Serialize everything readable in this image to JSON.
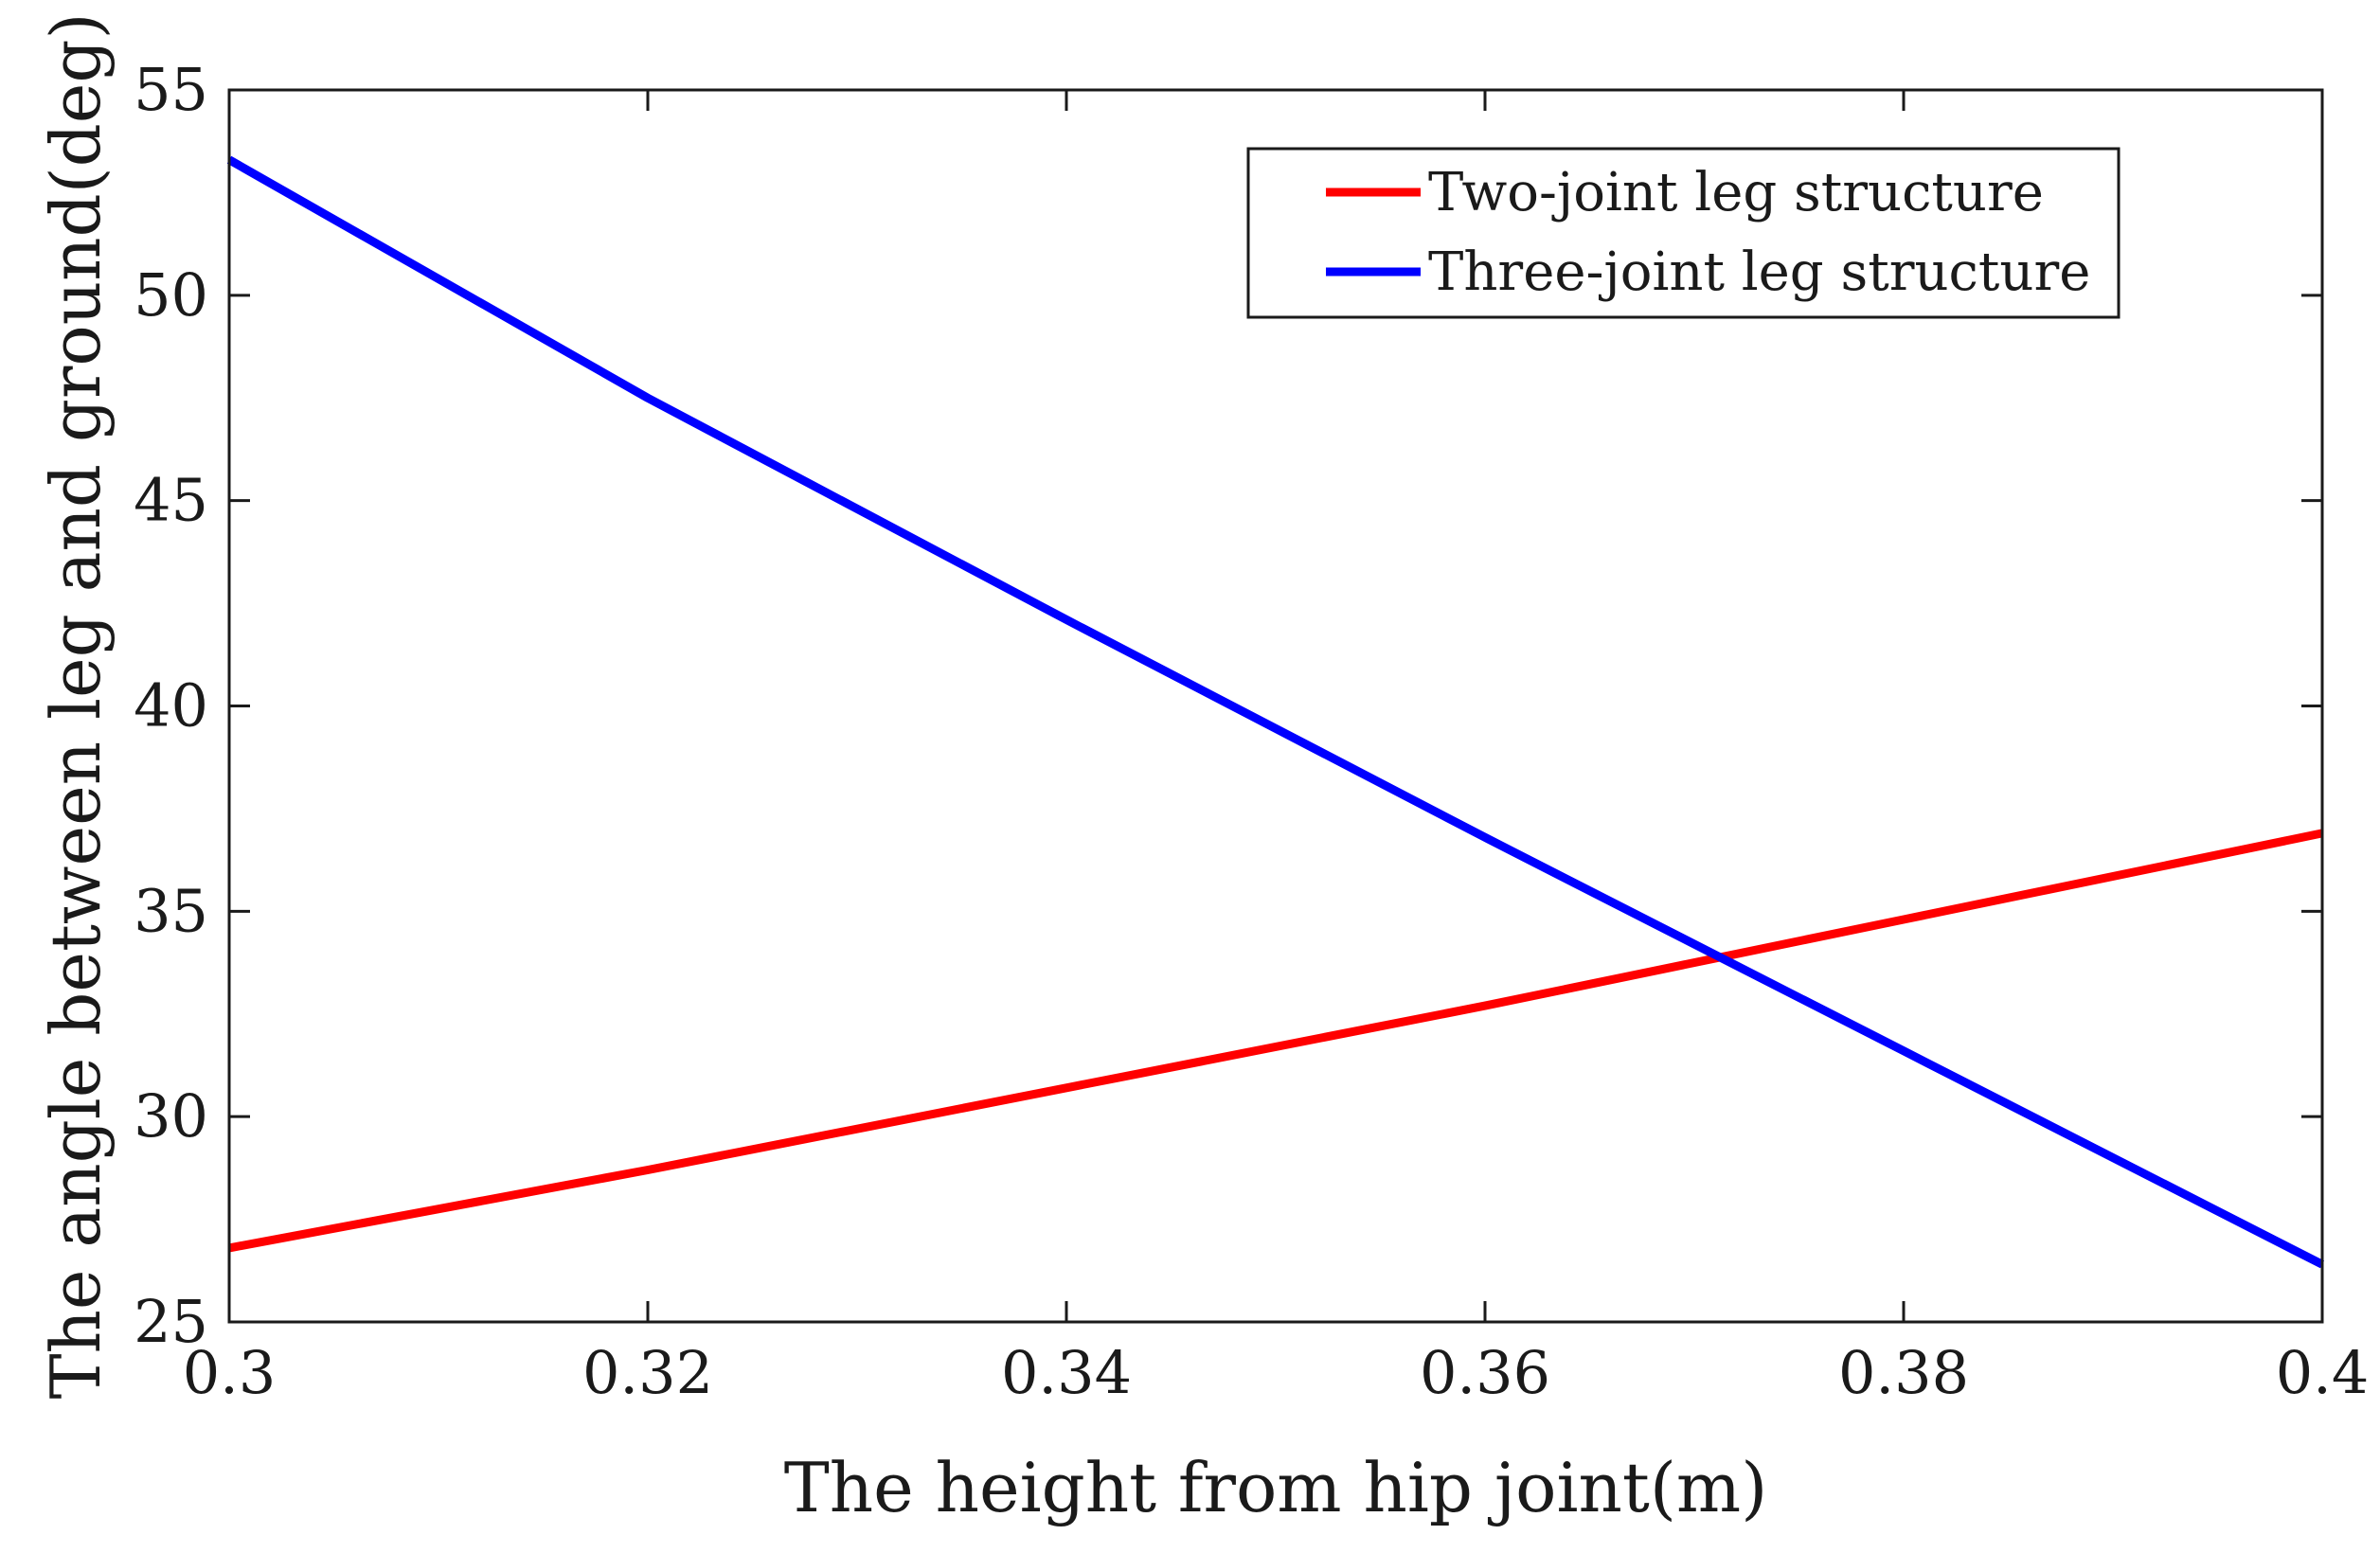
{
  "chart_data": {
    "type": "line",
    "title": "",
    "xlabel": "The height from hip joint(m)",
    "ylabel": "The angle between leg and ground(deg)",
    "xlim": [
      0.3,
      0.4
    ],
    "ylim": [
      25,
      55
    ],
    "xticks": [
      0.3,
      0.32,
      0.34,
      0.36,
      0.38,
      0.4
    ],
    "xtick_labels": [
      "0.3",
      "0.32",
      "0.34",
      "0.36",
      "0.38",
      "0.4"
    ],
    "yticks": [
      25,
      30,
      35,
      40,
      45,
      50,
      55
    ],
    "ytick_labels": [
      "25",
      "30",
      "35",
      "40",
      "45",
      "50",
      "55"
    ],
    "grid": false,
    "legend_position": "top-right",
    "series": [
      {
        "name": "Two-joint leg structure",
        "color": "#ff0000",
        "x": [
          0.3,
          0.32,
          0.34,
          0.36,
          0.38,
          0.4
        ],
        "y": [
          26.8,
          28.7,
          30.7,
          32.7,
          34.8,
          36.9
        ]
      },
      {
        "name": "Three-joint leg structure",
        "color": "#0000ff",
        "x": [
          0.3,
          0.32,
          0.34,
          0.36,
          0.38,
          0.4
        ],
        "y": [
          53.3,
          47.5,
          42.1,
          36.8,
          31.6,
          26.4
        ]
      }
    ]
  }
}
